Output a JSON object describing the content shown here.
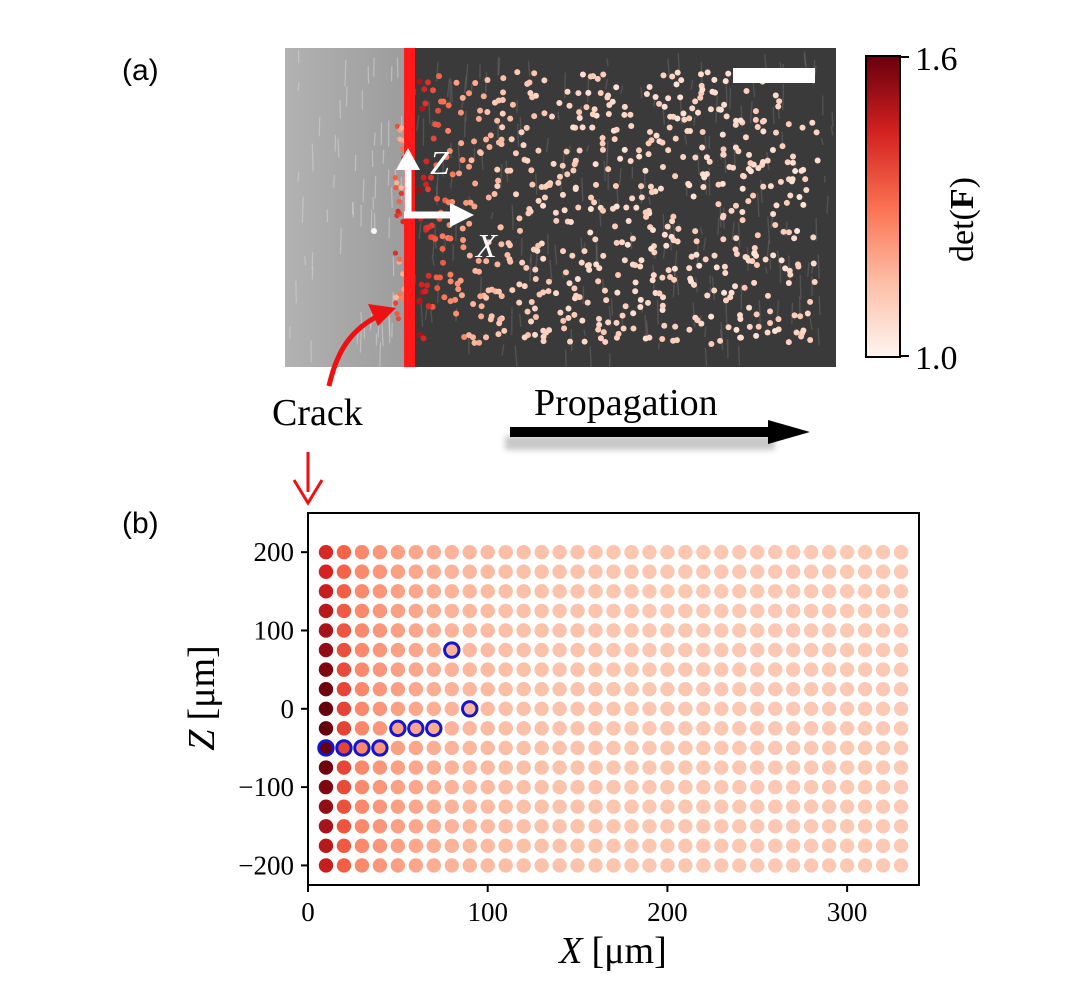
{
  "panel_a": {
    "label": "(a)",
    "crack_label": "Crack",
    "propagation_label": "Propagation",
    "axis_z_label": "Z",
    "axis_x_label": "X",
    "colorbar": {
      "label_prefix": "det(",
      "label_bold": "F",
      "label_suffix": ")",
      "max_label": "1.6",
      "min_label": "1.0",
      "min": 1.0,
      "max": 1.6
    },
    "colors": {
      "crack_line": "#ff1a1a",
      "arrow": "#ee1111",
      "left_region": "#a8a8a8",
      "right_region": "#3a3a3a"
    }
  },
  "panel_b": {
    "label": "(b)",
    "crack_arrow_color": "#ee1111",
    "highlight_color": "#1515d0"
  },
  "chart_data": {
    "type": "scatter",
    "title": "",
    "xlabel_var": "X",
    "xlabel_unit": "[μm]",
    "ylabel_var": "Z",
    "ylabel_unit": "[μm]",
    "xlim": [
      0,
      340
    ],
    "ylim": [
      -225,
      250
    ],
    "xticks": [
      0,
      100,
      200,
      300
    ],
    "yticks": [
      -200,
      -100,
      0,
      100,
      200
    ],
    "xtick_labels": [
      "0",
      "100",
      "200",
      "300"
    ],
    "ytick_labels": [
      "−200",
      "−100",
      "0",
      "100",
      "200"
    ],
    "grid_x": [
      10,
      20,
      30,
      40,
      50,
      60,
      70,
      80,
      90,
      100,
      110,
      120,
      130,
      140,
      150,
      160,
      170,
      180,
      190,
      200,
      210,
      220,
      230,
      240,
      250,
      260,
      270,
      280,
      290,
      300,
      310,
      320,
      330
    ],
    "grid_z": [
      200,
      175,
      150,
      125,
      100,
      75,
      50,
      25,
      0,
      -25,
      -50,
      -75,
      -100,
      -125,
      -150,
      -175,
      -200
    ],
    "value_model": "det(F) decays with X from about 1.6 at X=10 μm to about 1.1 at X=330 μm",
    "value_range": [
      1.0,
      1.6
    ],
    "highlighted_points": [
      {
        "x": 10,
        "z": -50
      },
      {
        "x": 20,
        "z": -50
      },
      {
        "x": 30,
        "z": -50
      },
      {
        "x": 40,
        "z": -50
      },
      {
        "x": 50,
        "z": -25
      },
      {
        "x": 60,
        "z": -25
      },
      {
        "x": 70,
        "z": -25
      },
      {
        "x": 80,
        "z": 75
      },
      {
        "x": 90,
        "z": 0
      }
    ]
  }
}
